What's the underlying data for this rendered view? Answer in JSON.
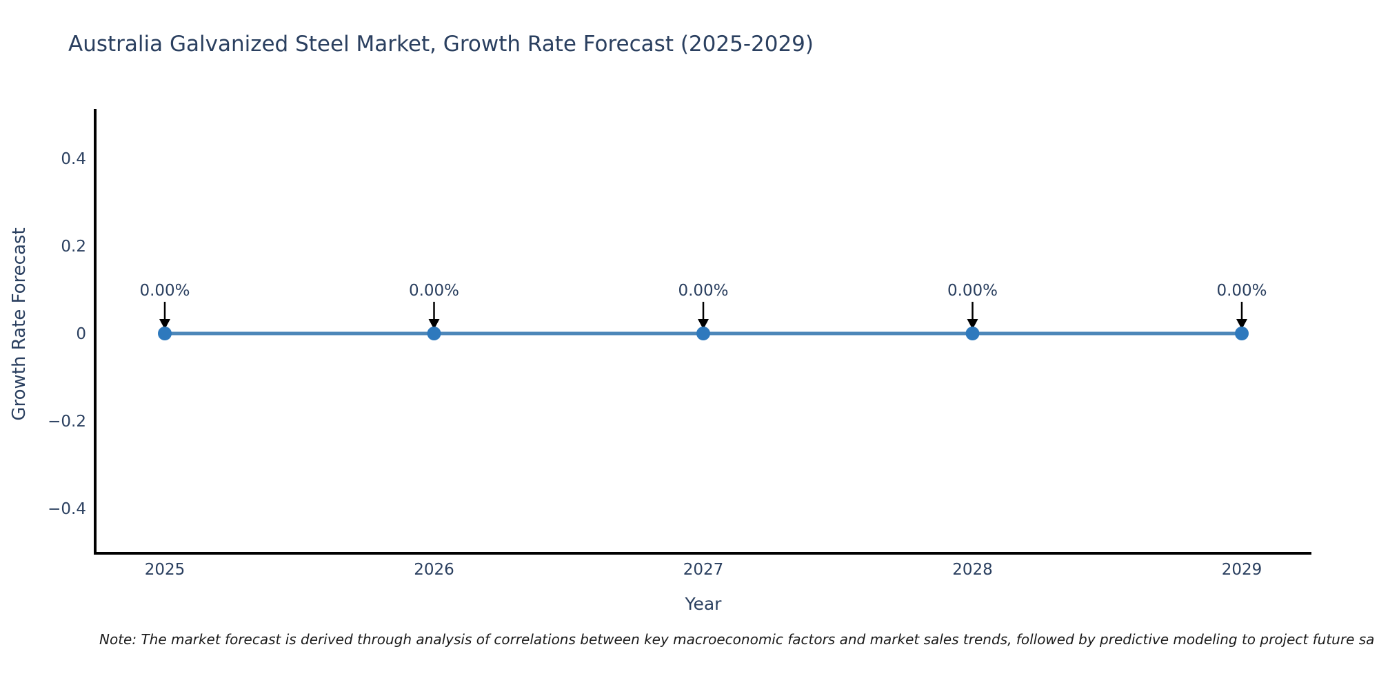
{
  "chart_data": {
    "type": "line",
    "title": "Australia Galvanized Steel Market, Growth Rate Forecast (2025-2029)",
    "xlabel": "Year",
    "ylabel": "Growth Rate Forecast",
    "categories": [
      "2025",
      "2026",
      "2027",
      "2028",
      "2029"
    ],
    "series": [
      {
        "name": "Growth Rate Forecast",
        "values": [
          0,
          0,
          0,
          0,
          0
        ]
      }
    ],
    "point_labels": [
      "0.00%",
      "0.00%",
      "0.00%",
      "0.00%",
      "0.00%"
    ],
    "ytick_labels": [
      "0.4",
      "0.2",
      "0",
      "−0.2",
      "−0.4"
    ],
    "ytick_values": [
      0.4,
      0.2,
      0,
      -0.2,
      -0.4
    ],
    "ylim": [
      -0.5,
      0.51
    ],
    "grid": false,
    "legend": "none",
    "colors": {
      "line": "#4d87b9",
      "marker": "#2e79bd",
      "axis": "#000000",
      "text": "#2a3f5f",
      "note_text": "#1a1a1a",
      "background": "#ffffff"
    },
    "note": "Note: The market forecast is derived through analysis of correlations between key macroeconomic factors and market sales trends, followed by predictive modeling to project future sa"
  }
}
